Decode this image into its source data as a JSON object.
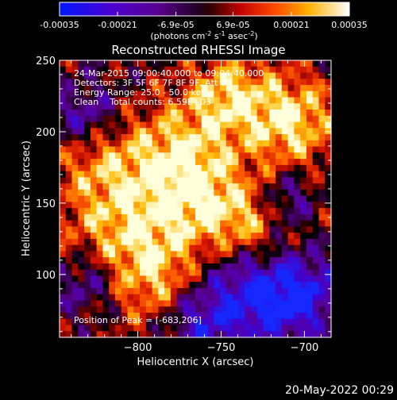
{
  "colorbar": {
    "ticks": [
      "-0.00035",
      "-0.00021",
      "-6.9e-05",
      "6.9e-05",
      "0.00021",
      "0.00035"
    ],
    "unit_prefix": "(photons cm",
    "unit_exp1": "-2",
    "unit_mid": " s",
    "unit_exp2": "-1",
    "unit_mid2": " asec",
    "unit_exp3": "-2",
    "unit_suffix": ")",
    "range": [
      -0.00035,
      0.00035
    ]
  },
  "annotations": {
    "line1": "24-Mar-2015 09:00:40.000 to 09:04:40.000",
    "line2": "Detectors: 3F 5F 6F 7F 8F 9F, Att 0",
    "line3": "Energy Range: 25.0 - 50.0 keV",
    "line4": "Clean    Total counts: 6.59E+03",
    "peak": "Position of Peak = [-683,206]"
  },
  "footer": {
    "date": "20-May-2022 00:29"
  },
  "chart_data": {
    "type": "heatmap",
    "title": "Reconstructed RHESSI Image",
    "xlabel": "Heliocentric X (arcsec)",
    "ylabel": "Heliocentric Y (arcsec)",
    "xlim": [
      -847,
      -684
    ],
    "ylim": [
      56,
      250
    ],
    "xticks": [
      -800,
      -750,
      -700
    ],
    "xtick_labels": [
      "−800",
      "−750",
      "−700"
    ],
    "yticks": [
      100,
      150,
      200,
      250
    ],
    "ytick_labels": [
      "100",
      "150",
      "200",
      "250"
    ],
    "colormap": [
      "#0000ff",
      "#5a00a8",
      "#3a0030",
      "#000000",
      "#a00000",
      "#ff4000",
      "#ffa000",
      "#ffffff"
    ],
    "peak_position": [
      -683,
      206
    ]
  }
}
